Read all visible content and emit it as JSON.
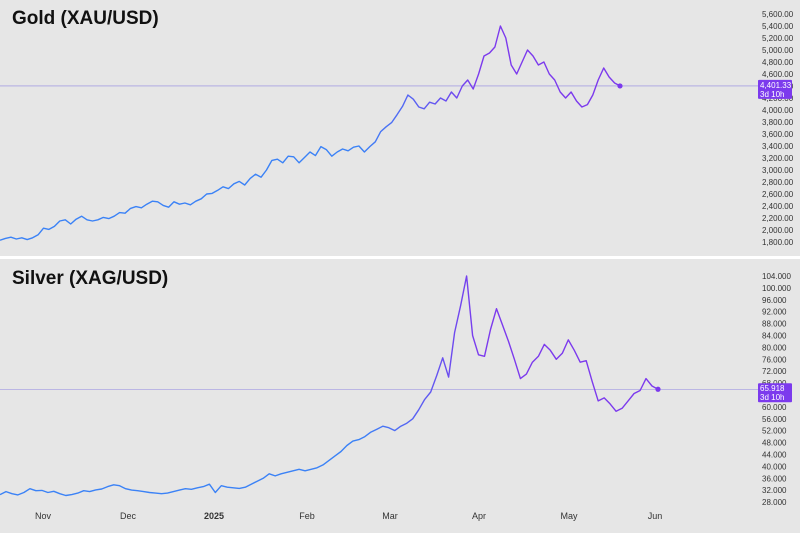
{
  "chart_data": [
    {
      "type": "line",
      "title": "Gold (XAU/USD)",
      "ylim": [
        1700,
        5700
      ],
      "y_ticks": [
        1800,
        2000,
        2200,
        2400,
        2600,
        2800,
        3000,
        3200,
        3400,
        3600,
        3800,
        4000,
        4200,
        4400,
        4600,
        4800,
        5000,
        5200,
        5400,
        5600
      ],
      "y_tick_labels": [
        "1,800.00",
        "2,000.00",
        "2,200.00",
        "2,400.00",
        "2,600.00",
        "2,800.00",
        "3,000.00",
        "3,200.00",
        "3,400.00",
        "3,600.00",
        "3,800.00",
        "4,000.00",
        "4,200.00",
        "4,400.00",
        "4,600.00",
        "4,800.00",
        "5,000.00",
        "5,200.00",
        "5,400.00",
        "5,600.00"
      ],
      "current_value": 4401.33,
      "current_label": "4,401.33",
      "countdown": "3d 10h",
      "series": [
        {
          "values": [
            1830,
            1860,
            1880,
            1850,
            1870,
            1840,
            1870,
            1920,
            2030,
            2010,
            2060,
            2150,
            2170,
            2100,
            2180,
            2230,
            2170,
            2150,
            2170,
            2210,
            2190,
            2230,
            2290,
            2280,
            2360,
            2390,
            2370,
            2430,
            2480,
            2470,
            2410,
            2380,
            2470,
            2430,
            2450,
            2420,
            2480,
            2520,
            2600,
            2610,
            2660,
            2720,
            2690,
            2770,
            2810,
            2750,
            2860,
            2930,
            2880,
            3000,
            3160,
            3180,
            3120,
            3230,
            3220,
            3120,
            3210,
            3300,
            3240,
            3390,
            3340,
            3230,
            3300,
            3350,
            3320,
            3380,
            3400,
            3300,
            3390,
            3470,
            3640,
            3720,
            3790,
            3920,
            4060,
            4250,
            4180,
            4050,
            4020,
            4130,
            4100,
            4200,
            4150,
            4300,
            4200,
            4400,
            4500,
            4350,
            4600,
            4900,
            4950,
            5050,
            5400,
            5200,
            4750,
            4600,
            4800,
            5000,
            4900,
            4750,
            4800,
            4600,
            4500,
            4300,
            4200,
            4300,
            4150,
            4050,
            4090,
            4250,
            4500,
            4700,
            4550,
            4450,
            4401
          ]
        }
      ]
    },
    {
      "type": "line",
      "title": "Silver (XAG/USD)",
      "ylim": [
        26,
        106
      ],
      "y_ticks": [
        28,
        32,
        36,
        40,
        44,
        48,
        52,
        56,
        60,
        64,
        68,
        72,
        76,
        80,
        84,
        88,
        92,
        96,
        100,
        104
      ],
      "y_tick_labels": [
        "28.000",
        "32.000",
        "36.000",
        "40.000",
        "44.000",
        "48.000",
        "52.000",
        "56.000",
        "60.000",
        "64.000",
        "68.000",
        "72.000",
        "76.000",
        "80.000",
        "84.000",
        "88.000",
        "92.000",
        "96.000",
        "100.000",
        "104.000"
      ],
      "current_value": 65.918,
      "current_label": "65.918",
      "countdown": "3d 10h",
      "series": [
        {
          "values": [
            30.5,
            31.5,
            30.8,
            30.4,
            31.2,
            32.5,
            31.8,
            31.9,
            31.2,
            31.6,
            30.8,
            30.2,
            30.5,
            31.0,
            31.8,
            31.5,
            32.1,
            32.4,
            33.2,
            33.8,
            33.5,
            32.5,
            32.0,
            31.8,
            31.5,
            31.2,
            31.0,
            30.8,
            31.0,
            31.5,
            32.0,
            32.5,
            32.3,
            32.8,
            33.2,
            34.0,
            31.2,
            33.5,
            33.0,
            32.8,
            32.6,
            33.0,
            34.0,
            35.0,
            36.0,
            37.5,
            36.8,
            37.5,
            38.0,
            38.5,
            39.0,
            38.5,
            39.0,
            39.5,
            40.5,
            42.0,
            43.5,
            45.0,
            47.0,
            48.5,
            49.0,
            50.0,
            51.5,
            52.5,
            53.5,
            53.0,
            52.0,
            53.5,
            54.5,
            56.0,
            59.0,
            62.5,
            65.0,
            70.5,
            76.5,
            70.0,
            85.0,
            94.0,
            104.0,
            84.0,
            77.5,
            77.0,
            86.0,
            93.0,
            87.5,
            82.0,
            76.0,
            69.5,
            71.0,
            75.0,
            77.0,
            81.0,
            79.0,
            76.0,
            78.0,
            82.5,
            79.0,
            75.0,
            75.5,
            68.5,
            62.0,
            63.0,
            61.0,
            58.5,
            59.5,
            62.0,
            64.5,
            65.5,
            69.5,
            67.0,
            65.918
          ]
        }
      ]
    }
  ],
  "x_axis": {
    "labels": [
      "Nov",
      "Dec",
      "2025",
      "Feb",
      "Mar",
      "Apr",
      "May",
      "Jun"
    ],
    "bold": [
      false,
      false,
      true,
      false,
      false,
      false,
      false,
      false
    ]
  },
  "colors": {
    "line_start": "#3b82f6",
    "line_end": "#7c3aed",
    "price_line": "#7b6fe0",
    "badge_bg": "#7c3aed",
    "background": "#e6e6e6",
    "divider": "#ffffff"
  }
}
